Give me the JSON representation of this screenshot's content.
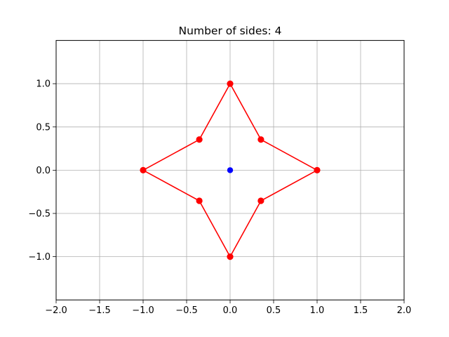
{
  "chart_data": {
    "type": "line",
    "title": "Number of sides: 4",
    "xlabel": "",
    "ylabel": "",
    "xlim": [
      -2.0,
      2.0
    ],
    "ylim": [
      -1.5,
      1.5
    ],
    "grid": true,
    "x_ticks": [
      -2.0,
      -1.5,
      -1.0,
      -0.5,
      0.0,
      0.5,
      1.0,
      1.5,
      2.0
    ],
    "x_tick_labels": [
      "−2.0",
      "−1.5",
      "−1.0",
      "−0.5",
      "0.0",
      "0.5",
      "1.0",
      "1.5",
      "2.0"
    ],
    "y_ticks": [
      1.0,
      0.5,
      0.0,
      -0.5,
      -1.0
    ],
    "y_tick_labels": [
      "1.0",
      "0.5",
      "0.0",
      "−0.5",
      "−1.0"
    ],
    "series": [
      {
        "kind": "closed-line-with-markers",
        "color": "#ff0000",
        "x": [
          1.0,
          0.354,
          0.0,
          -0.354,
          -1.0,
          -0.354,
          0.0,
          0.354
        ],
        "y": [
          0.0,
          0.354,
          1.0,
          0.354,
          0.0,
          -0.354,
          -1.0,
          -0.354
        ]
      },
      {
        "kind": "marker",
        "color": "#0000ff",
        "x": [
          0.0
        ],
        "y": [
          0.0
        ]
      }
    ]
  }
}
